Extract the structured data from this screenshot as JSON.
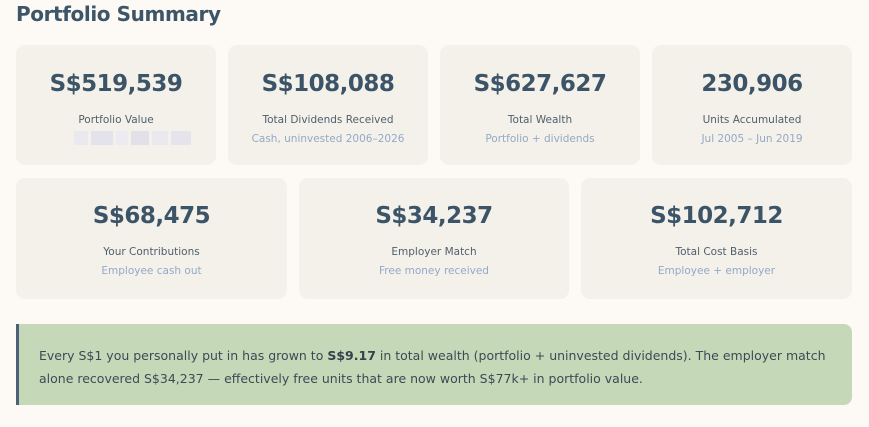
{
  "page": {
    "title": "Portfolio Summary"
  },
  "cards_row1": [
    {
      "value": "S$519,539",
      "label": "Portfolio Value",
      "sub": ""
    },
    {
      "value": "S$108,088",
      "label": "Total Dividends Received",
      "sub": "Cash, uninvested 2006–2026"
    },
    {
      "value": "S$627,627",
      "label": "Total Wealth",
      "sub": "Portfolio + dividends"
    },
    {
      "value": "230,906",
      "label": "Units Accumulated",
      "sub": "Jul 2005 – Jun 2019"
    }
  ],
  "cards_row2": [
    {
      "value": "S$68,475",
      "label": "Your Contributions",
      "sub": "Employee cash out"
    },
    {
      "value": "S$34,237",
      "label": "Employer Match",
      "sub": "Free money received"
    },
    {
      "value": "S$102,712",
      "label": "Total Cost Basis",
      "sub": "Employee + employer"
    }
  ],
  "insight": {
    "text_before": "Every S$1 you personally put in has grown to ",
    "highlight": "S$9.17",
    "text_after": " in total wealth (portfolio + uninvested dividends). The employer match alone recovered S$34,237 — effectively free units that are now worth S$77k+ in portfolio value."
  },
  "colors": {
    "page_background": "#fdf9f4",
    "card_background": "#f4f1ea",
    "value_text": "#3c5467",
    "sub_text": "#93a9c7",
    "insight_background": "#c5d9b9",
    "insight_border": "#4a6179"
  }
}
